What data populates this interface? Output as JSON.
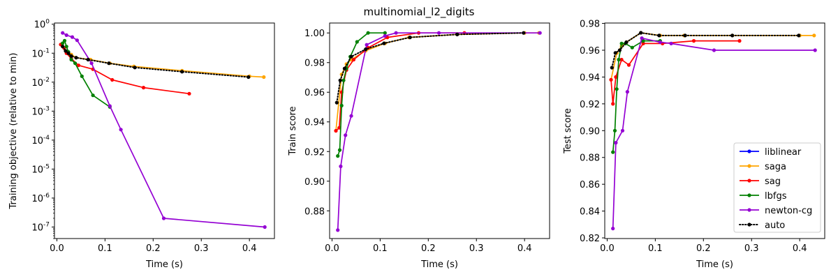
{
  "figure_title": "multinomial_l2_digits",
  "colors": {
    "liblinear": "#0000ff",
    "saga": "#ffa500",
    "sag": "#ff0000",
    "lbfgs": "#008000",
    "newton-cg": "#9400d3",
    "auto": "#000000"
  },
  "legend": {
    "placement": "lower-right of third panel",
    "entries": [
      {
        "name": "liblinear",
        "color": "#0000ff",
        "style": "solid"
      },
      {
        "name": "saga",
        "color": "#ffa500",
        "style": "solid"
      },
      {
        "name": "sag",
        "color": "#ff0000",
        "style": "solid"
      },
      {
        "name": "lbfgs",
        "color": "#008000",
        "style": "solid"
      },
      {
        "name": "newton-cg",
        "color": "#9400d3",
        "style": "solid"
      },
      {
        "name": "auto",
        "color": "#000000",
        "style": "dotted"
      }
    ]
  },
  "chart_data": [
    {
      "type": "line",
      "id": "objective",
      "xlabel": "Time (s)",
      "ylabel": "Training objective (relative to min)",
      "yscale": "log",
      "xlim": [
        -0.005,
        0.452
      ],
      "ylim": [
        4e-08,
        1.1
      ],
      "xticks": [
        0.0,
        0.1,
        0.2,
        0.3,
        0.4
      ],
      "xtick_labels": [
        "0.0",
        "0.1",
        "0.2",
        "0.3",
        "0.4"
      ],
      "yticks_exp": [
        0,
        -1,
        -2,
        -3,
        -4,
        -5,
        -6,
        -7
      ],
      "series": [
        {
          "name": "saga",
          "x": [
            0.008,
            0.02,
            0.03,
            0.04,
            0.07,
            0.11,
            0.16,
            0.26,
            0.4,
            0.43
          ],
          "y": [
            0.2,
            0.11,
            0.09,
            0.07,
            0.06,
            0.045,
            0.035,
            0.025,
            0.016,
            0.015
          ]
        },
        {
          "name": "sag",
          "x": [
            0.008,
            0.015,
            0.02,
            0.03,
            0.045,
            0.075,
            0.115,
            0.18,
            0.275
          ],
          "y": [
            0.2,
            0.15,
            0.1,
            0.065,
            0.038,
            0.028,
            0.012,
            0.0065,
            0.004
          ]
        },
        {
          "name": "lbfgs",
          "x": [
            0.012,
            0.016,
            0.02,
            0.024,
            0.03,
            0.038,
            0.052,
            0.075,
            0.11
          ],
          "y": [
            0.22,
            0.27,
            0.17,
            0.11,
            0.06,
            0.045,
            0.016,
            0.0035,
            0.0014
          ]
        },
        {
          "name": "newton-cg",
          "x": [
            0.012,
            0.02,
            0.032,
            0.042,
            0.072,
            0.11,
            0.133,
            0.222,
            0.432
          ],
          "y": [
            0.5,
            0.42,
            0.36,
            0.28,
            0.045,
            0.0015,
            0.00023,
            2e-07,
            1e-07
          ]
        },
        {
          "name": "auto",
          "x": [
            0.012,
            0.018,
            0.024,
            0.03,
            0.04,
            0.065,
            0.108,
            0.162,
            0.26,
            0.398
          ],
          "y": [
            0.17,
            0.12,
            0.1,
            0.08,
            0.07,
            0.06,
            0.045,
            0.032,
            0.023,
            0.015
          ]
        }
      ]
    },
    {
      "type": "line",
      "id": "train",
      "xlabel": "Time (s)",
      "ylabel": "Train score",
      "yscale": "linear",
      "xlim": [
        -0.005,
        0.452
      ],
      "ylim": [
        0.8613,
        1.0067
      ],
      "xticks": [
        0.0,
        0.1,
        0.2,
        0.3,
        0.4
      ],
      "xtick_labels": [
        "0.0",
        "0.1",
        "0.2",
        "0.3",
        "0.4"
      ],
      "yticks": [
        0.88,
        0.9,
        0.92,
        0.94,
        0.96,
        0.98,
        1.0
      ],
      "ytick_labels": [
        "0.88",
        "0.90",
        "0.92",
        "0.94",
        "0.96",
        "0.98",
        "1.00"
      ],
      "series": [
        {
          "name": "saga",
          "x": [
            0.008,
            0.02,
            0.03,
            0.04,
            0.07,
            0.11,
            0.16,
            0.26,
            0.4,
            0.43
          ],
          "y": [
            0.934,
            0.972,
            0.979,
            0.982,
            0.988,
            0.993,
            0.997,
            0.999,
            1.0,
            1.0
          ]
        },
        {
          "name": "sag",
          "x": [
            0.008,
            0.015,
            0.02,
            0.03,
            0.045,
            0.075,
            0.115,
            0.18,
            0.275
          ],
          "y": [
            0.934,
            0.936,
            0.96,
            0.975,
            0.982,
            0.99,
            0.997,
            1.0,
            1.0
          ]
        },
        {
          "name": "lbfgs",
          "x": [
            0.012,
            0.016,
            0.02,
            0.024,
            0.03,
            0.038,
            0.052,
            0.075,
            0.11
          ],
          "y": [
            0.917,
            0.921,
            0.951,
            0.968,
            0.976,
            0.984,
            0.994,
            1.0,
            1.0
          ]
        },
        {
          "name": "newton-cg",
          "x": [
            0.012,
            0.018,
            0.028,
            0.04,
            0.072,
            0.11,
            0.133,
            0.222,
            0.432
          ],
          "y": [
            0.867,
            0.91,
            0.931,
            0.944,
            0.992,
            0.998,
            1.0,
            1.0,
            1.0
          ]
        },
        {
          "name": "auto",
          "x": [
            0.01,
            0.017,
            0.026,
            0.04,
            0.07,
            0.108,
            0.162,
            0.26,
            0.398
          ],
          "y": [
            0.953,
            0.968,
            0.976,
            0.984,
            0.989,
            0.993,
            0.997,
            0.999,
            1.0
          ]
        }
      ]
    },
    {
      "type": "line",
      "id": "test",
      "xlabel": "Time (s)",
      "ylabel": "Test score",
      "yscale": "linear",
      "xlim": [
        -0.005,
        0.452
      ],
      "ylim": [
        0.8195,
        0.9803
      ],
      "xticks": [
        0.0,
        0.1,
        0.2,
        0.3,
        0.4
      ],
      "xtick_labels": [
        "0.0",
        "0.1",
        "0.2",
        "0.3",
        "0.4"
      ],
      "yticks": [
        0.82,
        0.84,
        0.86,
        0.88,
        0.9,
        0.92,
        0.94,
        0.96,
        0.98
      ],
      "ytick_labels": [
        "0.82",
        "0.84",
        "0.86",
        "0.88",
        "0.90",
        "0.92",
        "0.94",
        "0.96",
        "0.98"
      ],
      "series": [
        {
          "name": "saga",
          "x": [
            0.008,
            0.02,
            0.03,
            0.04,
            0.07,
            0.11,
            0.16,
            0.26,
            0.4,
            0.43
          ],
          "y": [
            0.938,
            0.958,
            0.963,
            0.966,
            0.973,
            0.971,
            0.971,
            0.971,
            0.971,
            0.971
          ]
        },
        {
          "name": "sag",
          "x": [
            0.008,
            0.012,
            0.018,
            0.03,
            0.045,
            0.075,
            0.115,
            0.18,
            0.275
          ],
          "y": [
            0.938,
            0.92,
            0.94,
            0.953,
            0.949,
            0.965,
            0.965,
            0.967,
            0.967
          ]
        },
        {
          "name": "lbfgs",
          "x": [
            0.012,
            0.016,
            0.02,
            0.024,
            0.03,
            0.038,
            0.052,
            0.075,
            0.11
          ],
          "y": [
            0.884,
            0.9,
            0.931,
            0.953,
            0.965,
            0.965,
            0.962,
            0.967,
            0.967
          ]
        },
        {
          "name": "newton-cg",
          "x": [
            0.012,
            0.018,
            0.032,
            0.042,
            0.072,
            0.11,
            0.133,
            0.222,
            0.432
          ],
          "y": [
            0.827,
            0.891,
            0.9,
            0.929,
            0.969,
            0.966,
            0.965,
            0.96,
            0.96
          ]
        },
        {
          "name": "auto",
          "x": [
            0.01,
            0.017,
            0.026,
            0.04,
            0.07,
            0.108,
            0.162,
            0.26,
            0.398
          ],
          "y": [
            0.947,
            0.958,
            0.96,
            0.966,
            0.973,
            0.971,
            0.971,
            0.971,
            0.971
          ]
        }
      ]
    }
  ]
}
